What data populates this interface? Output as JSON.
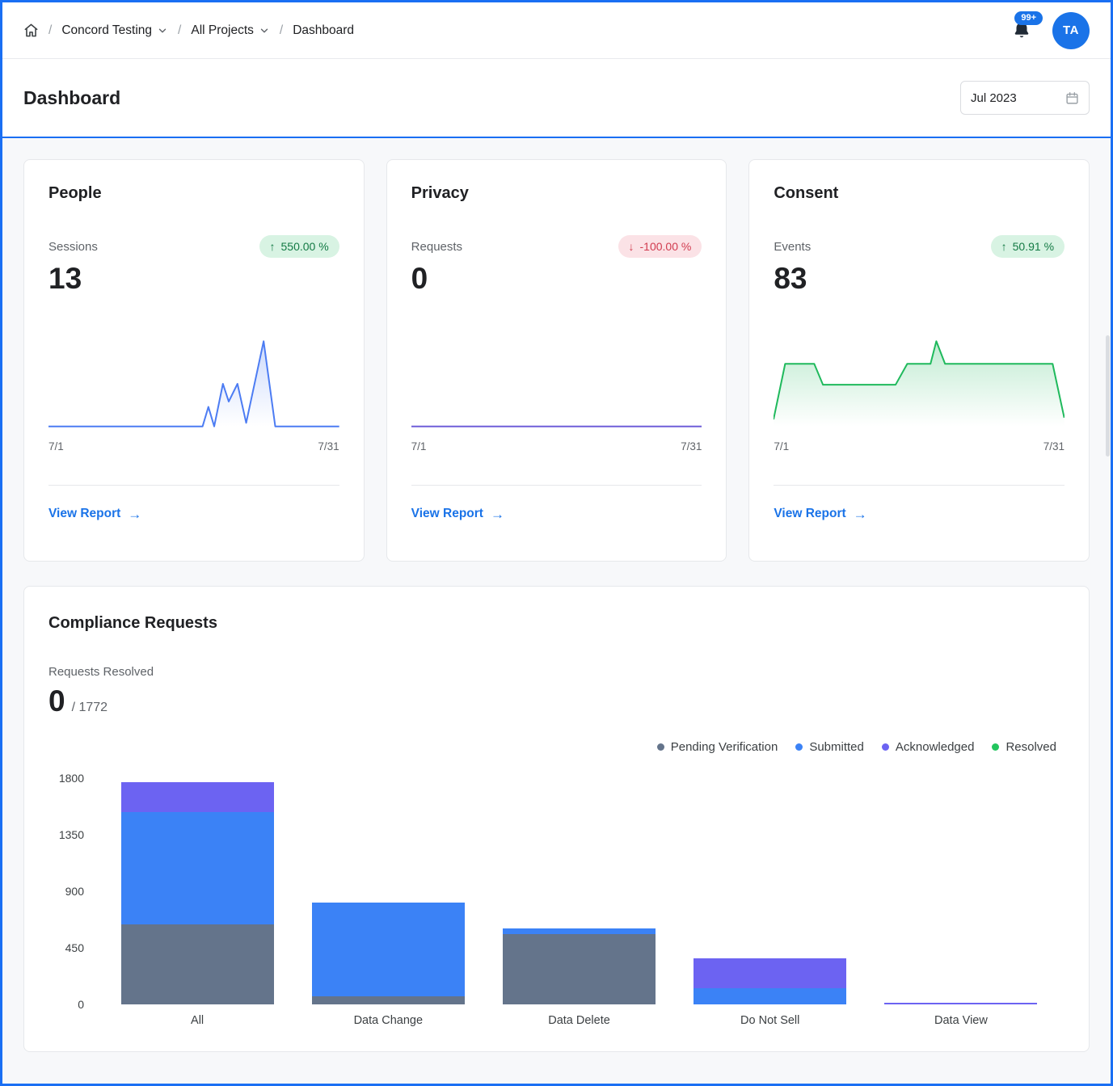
{
  "colors": {
    "accent": "#1a6ff3",
    "link": "#1a73e8",
    "delta_up_bg": "#d8f3e3",
    "delta_up_text": "#137a44",
    "delta_down_bg": "#fbe2e6",
    "delta_down_text": "#d13b4f"
  },
  "topbar": {
    "breadcrumb": [
      {
        "label": "Concord Testing",
        "dropdown": true
      },
      {
        "label": "All Projects",
        "dropdown": true
      },
      {
        "label": "Dashboard",
        "dropdown": false
      }
    ],
    "notification_badge": "99+",
    "avatar": "TA"
  },
  "header": {
    "title": "Dashboard",
    "date_value": "Jul 2023"
  },
  "cards": [
    {
      "title": "People",
      "metric_label": "Sessions",
      "value": "13",
      "delta": "550.00 %",
      "direction": "up",
      "x_start": "7/1",
      "x_end": "7/31",
      "link_label": "View Report"
    },
    {
      "title": "Privacy",
      "metric_label": "Requests",
      "value": "0",
      "delta": "-100.00 %",
      "direction": "down",
      "x_start": "7/1",
      "x_end": "7/31",
      "link_label": "View Report"
    },
    {
      "title": "Consent",
      "metric_label": "Events",
      "value": "83",
      "delta": "50.91 %",
      "direction": "up",
      "x_start": "7/1",
      "x_end": "7/31",
      "link_label": "View Report"
    }
  ],
  "compliance": {
    "title": "Compliance Requests",
    "metric_label": "Requests Resolved",
    "resolved": "0",
    "total": "/ 1772",
    "legend": [
      {
        "label": "Pending Verification",
        "color": "#64748b"
      },
      {
        "label": "Submitted",
        "color": "#3b82f6"
      },
      {
        "label": "Acknowledged",
        "color": "#6c63f2"
      },
      {
        "label": "Resolved",
        "color": "#22c55e"
      }
    ]
  },
  "chart_data": [
    {
      "id": "people-sparkline",
      "type": "line",
      "title": "People Sessions, July",
      "color": "#4c7cf3",
      "x_range": [
        "7/1",
        "7/31"
      ],
      "points": [
        [
          0,
          0
        ],
        [
          53,
          0
        ],
        [
          55,
          1.1
        ],
        [
          57,
          0
        ],
        [
          60,
          2.4
        ],
        [
          62,
          1.4
        ],
        [
          65,
          2.4
        ],
        [
          68,
          0.2
        ],
        [
          74,
          4.8
        ],
        [
          78,
          0
        ],
        [
          100,
          0
        ]
      ]
    },
    {
      "id": "privacy-sparkline",
      "type": "line",
      "title": "Privacy Requests, July",
      "color": "#6f5fd8",
      "x_range": [
        "7/1",
        "7/31"
      ],
      "points": [
        [
          0,
          0
        ],
        [
          100,
          0
        ]
      ]
    },
    {
      "id": "consent-sparkline",
      "type": "line",
      "title": "Consent Events, July",
      "color": "#1fb95c",
      "x_range": [
        "7/1",
        "7/31"
      ],
      "points": [
        [
          0,
          0.4
        ],
        [
          4,
          3.6
        ],
        [
          14,
          3.6
        ],
        [
          17,
          2.4
        ],
        [
          42,
          2.4
        ],
        [
          46,
          3.6
        ],
        [
          54,
          3.6
        ],
        [
          56,
          4.9
        ],
        [
          59,
          3.6
        ],
        [
          96,
          3.6
        ],
        [
          100,
          0.5
        ]
      ]
    },
    {
      "id": "compliance-bars",
      "type": "bar",
      "stacked": true,
      "title": "Compliance Requests by type",
      "categories": [
        "All",
        "Data Change",
        "Data Delete",
        "Do Not Sell",
        "Data View"
      ],
      "series": [
        {
          "name": "Pending Verification",
          "color": "#64748b",
          "values": [
            640,
            70,
            560,
            0,
            0
          ]
        },
        {
          "name": "Submitted",
          "color": "#3b82f6",
          "values": [
            895,
            740,
            50,
            130,
            0
          ]
        },
        {
          "name": "Acknowledged",
          "color": "#6c63f2",
          "values": [
            237,
            0,
            0,
            240,
            15
          ]
        },
        {
          "name": "Resolved",
          "color": "#22c55e",
          "values": [
            0,
            0,
            0,
            0,
            0
          ]
        }
      ],
      "yticks": [
        1800,
        1350,
        900,
        450,
        0
      ],
      "ylim": [
        0,
        1800
      ],
      "grid": false,
      "legend_position": "top-right"
    }
  ]
}
